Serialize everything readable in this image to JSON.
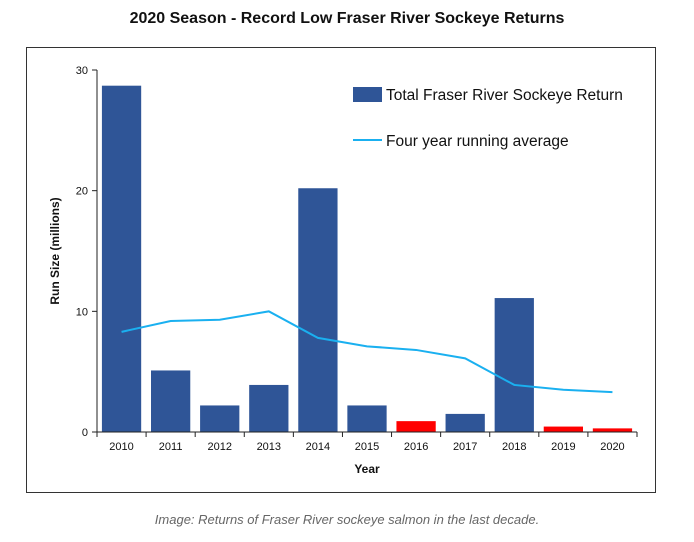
{
  "page": {
    "title": "2020 Season - Record Low Fraser River Sockeye Returns",
    "caption": "Image: Returns of Fraser River sockeye salmon in the last decade."
  },
  "chart_data": {
    "type": "bar",
    "title": "",
    "xlabel": "Year",
    "ylabel": "Run Size (millions)",
    "ylim": [
      0,
      30
    ],
    "yticks": [
      "0",
      "10",
      "20",
      "30"
    ],
    "categories": [
      "2010",
      "2011",
      "2012",
      "2013",
      "2014",
      "2015",
      "2016",
      "2017",
      "2018",
      "2019",
      "2020"
    ],
    "series": [
      {
        "name": "Total Fraser River Sockeye Return",
        "type": "bar",
        "color": "#2f5597",
        "highlight_color": "#ff0000",
        "highlighted_categories": [
          "2016",
          "2019",
          "2020"
        ],
        "values": [
          28.7,
          5.1,
          2.2,
          3.9,
          20.2,
          2.2,
          0.9,
          1.5,
          11.1,
          0.45,
          0.3
        ]
      },
      {
        "name": "Four year running average",
        "type": "line",
        "color": "#1ab0f0",
        "values": [
          8.3,
          9.2,
          9.3,
          10.0,
          7.8,
          7.1,
          6.8,
          6.1,
          3.9,
          3.5,
          3.3
        ]
      }
    ],
    "legend_position": "top-right",
    "grid": false
  }
}
